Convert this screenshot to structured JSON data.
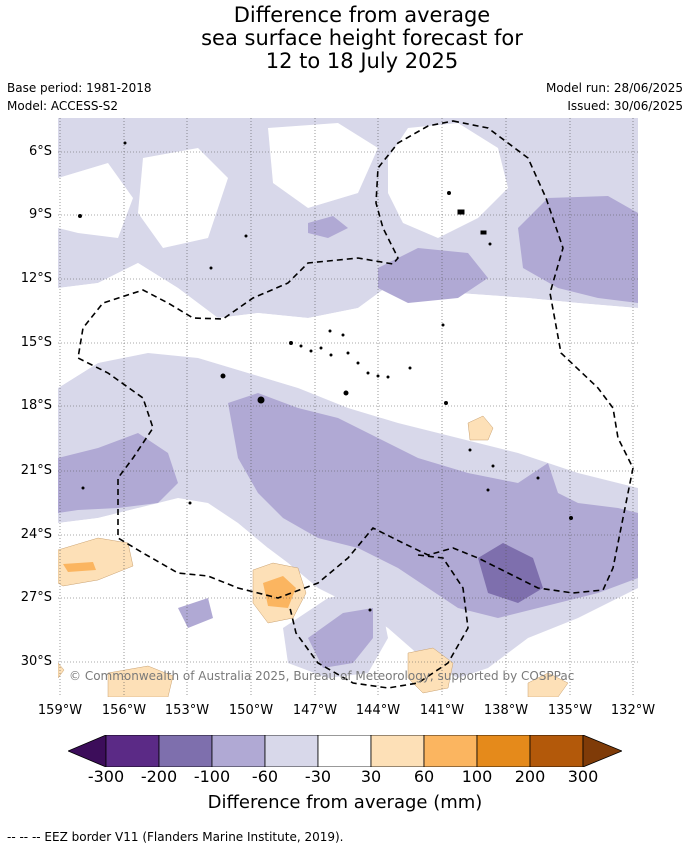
{
  "title": {
    "line1": "Difference from average",
    "line2": "sea surface height forecast for",
    "line3": "12 to 18 July 2025"
  },
  "meta": {
    "base_period": "Base period: 1981-2018",
    "model": "Model: ACCESS-S2",
    "model_run": "Model run: 28/06/2025",
    "issued": "Issued: 30/06/2025"
  },
  "map": {
    "lat_labels": [
      "6°S",
      "9°S",
      "12°S",
      "15°S",
      "18°S",
      "21°S",
      "24°S",
      "27°S",
      "30°S"
    ],
    "lon_labels": [
      "159°W",
      "156°W",
      "153°W",
      "150°W",
      "147°W",
      "144°W",
      "141°W",
      "138°W",
      "135°W",
      "132°W"
    ],
    "copyright": "© Commonwealth of Australia 2025, Bureau of Meteorology, supported by COSPPac",
    "grid": "dotted",
    "colors": {
      "n300": "#3c0d5a",
      "n200": "#5b2a86",
      "n100": "#7e6fad",
      "n60": "#b0a9d4",
      "n30": "#d8d8ea",
      "neutral": "#ffffff",
      "p30": "#fde0b7",
      "p60": "#fbb560",
      "p100": "#e58a1b",
      "p200": "#b3590a",
      "p300": "#7f3b08"
    }
  },
  "colorbar": {
    "ticks": [
      "-300",
      "-200",
      "-100",
      "-60",
      "-30",
      "30",
      "60",
      "100",
      "200",
      "300"
    ],
    "label": "Difference from average (mm)"
  },
  "footer": "--  --  -- EEZ border V11 (Flanders Marine Institute, 2019)."
}
